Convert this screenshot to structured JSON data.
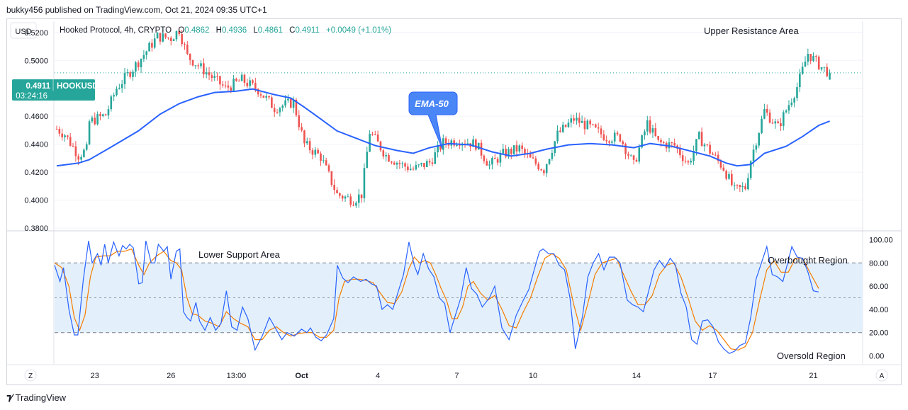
{
  "header": {
    "publisher": "bukky456 published on TradingView.com, Oct 21, 2024 09:35 UTC+1"
  },
  "footer": {
    "brand": "TradingView"
  },
  "colors": {
    "up": "#26a69a",
    "down": "#ef5350",
    "ema": "#2962ff",
    "stochK": "#2962ff",
    "stochD": "#f57c00",
    "band": "#e3f0fc",
    "grid": "#f0f3fa"
  },
  "chart_data": [
    {
      "type": "candlestick",
      "symbol_line": {
        "name": "Hooked Protocol, 4h, CRYPTO",
        "o_label": "O",
        "o_value": "0.4862",
        "h_label": "H",
        "h_value": "0.4936",
        "l_label": "L",
        "l_value": "0.4861",
        "c_label": "C",
        "c_value": "0.4911",
        "change": "+0.0049 (+1.01%)"
      },
      "currency": "USD",
      "price_ticks": [
        "0.5200",
        "0.5000",
        "0.4800",
        "0.4600",
        "0.4400",
        "0.4200",
        "0.4000",
        "0.3800"
      ],
      "ylim": [
        0.378,
        0.528
      ],
      "last_price": {
        "value": "0.4911",
        "ticker": "HOOKUSD",
        "countdown": "03:24:16"
      },
      "time_ticks": [
        "23",
        "26",
        "13:00",
        "Oct",
        "4",
        "7",
        "10",
        "14",
        "17",
        "21"
      ],
      "annotations": {
        "upper": "Upper Resistance Area",
        "ema": "EMA-50"
      },
      "close_path": [
        [
          0,
          0.451
        ],
        [
          3,
          0.447
        ],
        [
          8,
          0.432
        ],
        [
          11,
          0.436
        ],
        [
          12,
          0.456
        ],
        [
          18,
          0.461
        ],
        [
          22,
          0.48
        ],
        [
          30,
          0.499
        ],
        [
          37,
          0.517
        ],
        [
          42,
          0.516
        ],
        [
          45,
          0.522
        ],
        [
          48,
          0.503
        ],
        [
          54,
          0.493
        ],
        [
          62,
          0.48
        ],
        [
          68,
          0.486
        ],
        [
          74,
          0.479
        ],
        [
          80,
          0.466
        ],
        [
          87,
          0.47
        ],
        [
          91,
          0.44
        ],
        [
          97,
          0.431
        ],
        [
          103,
          0.404
        ],
        [
          109,
          0.4
        ],
        [
          112,
          0.404
        ],
        [
          115,
          0.449
        ],
        [
          121,
          0.432
        ],
        [
          127,
          0.425
        ],
        [
          131,
          0.422
        ],
        [
          137,
          0.427
        ],
        [
          142,
          0.441
        ],
        [
          148,
          0.443
        ],
        [
          154,
          0.44
        ],
        [
          159,
          0.425
        ],
        [
          164,
          0.433
        ],
        [
          170,
          0.437
        ],
        [
          174,
          0.429
        ],
        [
          179,
          0.422
        ],
        [
          184,
          0.447
        ],
        [
          190,
          0.458
        ],
        [
          196,
          0.452
        ],
        [
          202,
          0.445
        ],
        [
          207,
          0.445
        ],
        [
          212,
          0.425
        ],
        [
          217,
          0.455
        ],
        [
          221,
          0.441
        ],
        [
          227,
          0.439
        ],
        [
          232,
          0.426
        ],
        [
          236,
          0.445
        ],
        [
          240,
          0.435
        ],
        [
          245,
          0.423
        ],
        [
          249,
          0.407
        ],
        [
          253,
          0.409
        ],
        [
          255,
          0.429
        ],
        [
          260,
          0.464
        ],
        [
          265,
          0.452
        ],
        [
          272,
          0.481
        ],
        [
          276,
          0.505
        ],
        [
          281,
          0.495
        ],
        [
          284,
          0.491
        ]
      ],
      "ema_50": [
        [
          0,
          0.4245
        ],
        [
          8,
          0.4265
        ],
        [
          12,
          0.429
        ],
        [
          20,
          0.438
        ],
        [
          30,
          0.4495
        ],
        [
          38,
          0.4615
        ],
        [
          45,
          0.469
        ],
        [
          52,
          0.474
        ],
        [
          58,
          0.477
        ],
        [
          66,
          0.478
        ],
        [
          72,
          0.4795
        ],
        [
          80,
          0.4755
        ],
        [
          86,
          0.473
        ],
        [
          91,
          0.4665
        ],
        [
          97,
          0.458
        ],
        [
          103,
          0.4495
        ],
        [
          111,
          0.4435
        ],
        [
          117,
          0.439
        ],
        [
          125,
          0.4355
        ],
        [
          131,
          0.4335
        ],
        [
          137,
          0.4375
        ],
        [
          144,
          0.4405
        ],
        [
          152,
          0.4395
        ],
        [
          160,
          0.4345
        ],
        [
          167,
          0.4315
        ],
        [
          174,
          0.4335
        ],
        [
          180,
          0.4365
        ],
        [
          188,
          0.4395
        ],
        [
          196,
          0.4405
        ],
        [
          204,
          0.4395
        ],
        [
          212,
          0.4375
        ],
        [
          218,
          0.4405
        ],
        [
          226,
          0.4385
        ],
        [
          232,
          0.4355
        ],
        [
          240,
          0.4315
        ],
        [
          246,
          0.4265
        ],
        [
          250,
          0.4245
        ],
        [
          255,
          0.4255
        ],
        [
          260,
          0.4335
        ],
        [
          268,
          0.4385
        ],
        [
          274,
          0.4455
        ],
        [
          280,
          0.4535
        ],
        [
          284,
          0.4565
        ]
      ]
    },
    {
      "type": "line",
      "indicator": "Stochastic",
      "y_ticks": [
        "100.00",
        "80.00",
        "60.00",
        "40.00",
        "20.00",
        "0.00"
      ],
      "ylim": [
        -7,
        107
      ],
      "bands": {
        "upper": 80,
        "middle": 50,
        "lower": 20
      },
      "annotations": {
        "support": "Lower Support Area",
        "overbought": "Overbought Region",
        "oversold": "Oversold Region"
      },
      "k_series": [
        [
          0,
          78
        ],
        [
          3,
          64
        ],
        [
          5,
          76
        ],
        [
          8,
          40
        ],
        [
          11,
          18
        ],
        [
          13,
          18
        ],
        [
          16,
          65
        ],
        [
          19,
          99
        ],
        [
          21,
          80
        ],
        [
          24,
          88
        ],
        [
          26,
          78
        ],
        [
          28,
          96
        ],
        [
          30,
          80
        ],
        [
          33,
          98
        ],
        [
          36,
          86
        ],
        [
          38,
          95
        ],
        [
          40,
          92
        ],
        [
          42,
          96
        ],
        [
          44,
          93
        ],
        [
          47,
          62
        ],
        [
          49,
          63
        ],
        [
          51,
          99
        ],
        [
          54,
          80
        ],
        [
          56,
          80
        ],
        [
          58,
          96
        ],
        [
          61,
          90
        ],
        [
          63,
          94
        ],
        [
          65,
          66
        ],
        [
          68,
          90
        ],
        [
          70,
          92
        ],
        [
          72,
          38
        ],
        [
          74,
          33
        ],
        [
          76,
          30
        ],
        [
          79,
          46
        ],
        [
          81,
          30
        ],
        [
          84,
          22
        ],
        [
          87,
          33
        ],
        [
          90,
          22
        ],
        [
          93,
          28
        ],
        [
          96,
          56
        ],
        [
          99,
          25
        ],
        [
          102,
          22
        ],
        [
          105,
          42
        ],
        [
          108,
          32
        ],
        [
          112,
          5
        ],
        [
          116,
          17
        ],
        [
          120,
          33
        ],
        [
          123,
          25
        ],
        [
          127,
          14
        ],
        [
          130,
          20
        ],
        [
          134,
          17
        ],
        [
          138,
          23
        ],
        [
          141,
          20
        ],
        [
          143,
          24
        ],
        [
          146,
          16
        ],
        [
          149,
          13
        ],
        [
          152,
          18
        ],
        [
          156,
          32
        ],
        [
          158,
          78
        ],
        [
          161,
          67
        ],
        [
          164,
          63
        ],
        [
          167,
          68
        ],
        [
          171,
          64
        ],
        [
          174,
          66
        ],
        [
          177,
          62
        ],
        [
          180,
          60
        ],
        [
          183,
          40
        ],
        [
          186,
          44
        ],
        [
          189,
          40
        ],
        [
          193,
          60
        ],
        [
          195,
          70
        ],
        [
          198,
          98
        ],
        [
          201,
          78
        ],
        [
          203,
          70
        ],
        [
          206,
          88
        ],
        [
          209,
          75
        ],
        [
          212,
          68
        ],
        [
          215,
          50
        ],
        [
          218,
          45
        ],
        [
          221,
          20
        ],
        [
          224,
          35
        ],
        [
          227,
          50
        ],
        [
          230,
          76
        ],
        [
          233,
          58
        ],
        [
          236,
          53
        ],
        [
          239,
          42
        ],
        [
          243,
          50
        ],
        [
          246,
          60
        ],
        [
          250,
          24
        ],
        [
          254,
          14
        ],
        [
          258,
          35
        ],
        [
          262,
          48
        ],
        [
          265,
          57
        ],
        [
          268,
          74
        ],
        [
          271,
          90
        ],
        [
          273,
          92
        ],
        [
          276,
          88
        ],
        [
          279,
          88
        ],
        [
          282,
          78
        ],
        [
          285,
          74
        ],
        [
          288,
          50
        ],
        [
          291,
          6
        ],
        [
          295,
          34
        ],
        [
          298,
          68
        ],
        [
          301,
          80
        ],
        [
          304,
          88
        ],
        [
          307,
          74
        ],
        [
          310,
          85
        ],
        [
          313,
          85
        ],
        [
          316,
          80
        ],
        [
          320,
          48
        ],
        [
          323,
          44
        ],
        [
          326,
          42
        ],
        [
          329,
          38
        ],
        [
          332,
          56
        ],
        [
          335,
          74
        ],
        [
          338,
          82
        ],
        [
          341,
          76
        ],
        [
          344,
          84
        ],
        [
          347,
          78
        ],
        [
          350,
          54
        ],
        [
          353,
          42
        ],
        [
          356,
          14
        ],
        [
          359,
          10
        ],
        [
          362,
          30
        ],
        [
          365,
          31
        ],
        [
          368,
          25
        ],
        [
          371,
          12
        ],
        [
          374,
          6
        ],
        [
          377,
          2
        ],
        [
          380,
          4
        ],
        [
          383,
          9
        ],
        [
          386,
          11
        ],
        [
          389,
          33
        ],
        [
          392,
          66
        ],
        [
          395,
          80
        ],
        [
          398,
          94
        ],
        [
          401,
          70
        ],
        [
          404,
          68
        ],
        [
          407,
          64
        ],
        [
          410,
          82
        ],
        [
          412,
          94
        ],
        [
          415,
          85
        ],
        [
          418,
          84
        ],
        [
          421,
          72
        ],
        [
          424,
          56
        ],
        [
          427,
          55
        ]
      ],
      "d_series": [
        [
          0,
          80
        ],
        [
          4,
          76
        ],
        [
          8,
          60
        ],
        [
          11,
          33
        ],
        [
          14,
          22
        ],
        [
          17,
          35
        ],
        [
          20,
          68
        ],
        [
          23,
          85
        ],
        [
          27,
          86
        ],
        [
          31,
          86
        ],
        [
          35,
          90
        ],
        [
          39,
          90
        ],
        [
          43,
          92
        ],
        [
          47,
          78
        ],
        [
          50,
          70
        ],
        [
          53,
          80
        ],
        [
          57,
          86
        ],
        [
          61,
          90
        ],
        [
          65,
          82
        ],
        [
          68,
          80
        ],
        [
          71,
          74
        ],
        [
          74,
          50
        ],
        [
          77,
          36
        ],
        [
          80,
          35
        ],
        [
          84,
          30
        ],
        [
          88,
          28
        ],
        [
          92,
          25
        ],
        [
          96,
          38
        ],
        [
          100,
          32
        ],
        [
          104,
          28
        ],
        [
          108,
          25
        ],
        [
          112,
          14
        ],
        [
          116,
          14
        ],
        [
          120,
          22
        ],
        [
          124,
          25
        ],
        [
          128,
          20
        ],
        [
          132,
          17
        ],
        [
          136,
          19
        ],
        [
          140,
          20
        ],
        [
          144,
          20
        ],
        [
          148,
          16
        ],
        [
          152,
          16
        ],
        [
          156,
          22
        ],
        [
          159,
          50
        ],
        [
          162,
          64
        ],
        [
          166,
          66
        ],
        [
          170,
          66
        ],
        [
          174,
          65
        ],
        [
          178,
          63
        ],
        [
          182,
          54
        ],
        [
          186,
          46
        ],
        [
          190,
          45
        ],
        [
          194,
          55
        ],
        [
          198,
          75
        ],
        [
          201,
          85
        ],
        [
          204,
          80
        ],
        [
          207,
          82
        ],
        [
          210,
          80
        ],
        [
          213,
          70
        ],
        [
          216,
          58
        ],
        [
          219,
          48
        ],
        [
          222,
          32
        ],
        [
          225,
          32
        ],
        [
          228,
          42
        ],
        [
          231,
          60
        ],
        [
          234,
          64
        ],
        [
          238,
          54
        ],
        [
          242,
          48
        ],
        [
          246,
          52
        ],
        [
          250,
          40
        ],
        [
          254,
          26
        ],
        [
          258,
          24
        ],
        [
          262,
          38
        ],
        [
          266,
          50
        ],
        [
          270,
          68
        ],
        [
          274,
          84
        ],
        [
          278,
          88
        ],
        [
          282,
          84
        ],
        [
          286,
          74
        ],
        [
          290,
          45
        ],
        [
          294,
          22
        ],
        [
          298,
          45
        ],
        [
          302,
          70
        ],
        [
          306,
          80
        ],
        [
          310,
          82
        ],
        [
          314,
          84
        ],
        [
          318,
          70
        ],
        [
          322,
          56
        ],
        [
          326,
          44
        ],
        [
          330,
          44
        ],
        [
          334,
          52
        ],
        [
          338,
          70
        ],
        [
          342,
          78
        ],
        [
          346,
          80
        ],
        [
          350,
          68
        ],
        [
          354,
          50
        ],
        [
          358,
          30
        ],
        [
          362,
          22
        ],
        [
          366,
          26
        ],
        [
          370,
          22
        ],
        [
          374,
          14
        ],
        [
          378,
          6
        ],
        [
          382,
          5
        ],
        [
          386,
          8
        ],
        [
          390,
          20
        ],
        [
          394,
          48
        ],
        [
          398,
          74
        ],
        [
          402,
          82
        ],
        [
          406,
          72
        ],
        [
          410,
          72
        ],
        [
          414,
          84
        ],
        [
          418,
          84
        ],
        [
          422,
          72
        ],
        [
          427,
          58
        ]
      ]
    }
  ]
}
